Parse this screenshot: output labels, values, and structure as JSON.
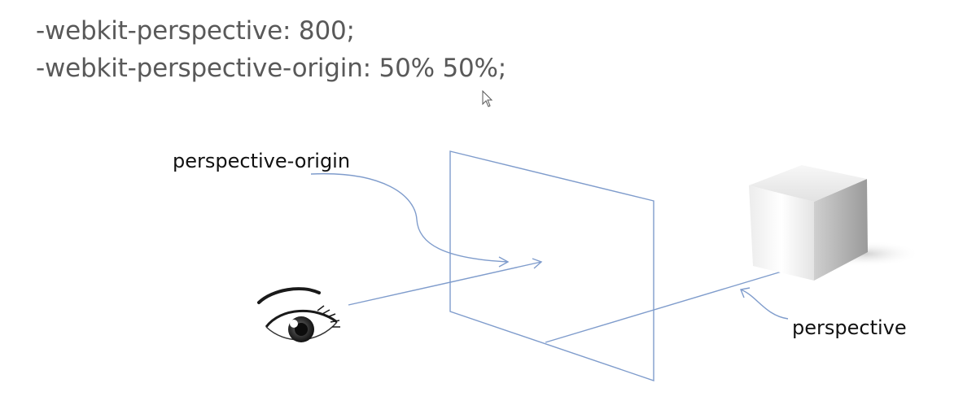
{
  "code": {
    "line1": "-webkit-perspective: 800;",
    "line2": "-webkit-perspective-origin: 50% 50%;"
  },
  "labels": {
    "perspective_origin": "perspective-origin",
    "perspective": "perspective"
  },
  "icons": [
    "mouse-cursor-icon",
    "eye-icon",
    "cube-icon"
  ],
  "colors": {
    "code_text": "#595959",
    "label_text": "#111111",
    "diagram_lines": "#6d8fbf",
    "background": "#ffffff"
  }
}
